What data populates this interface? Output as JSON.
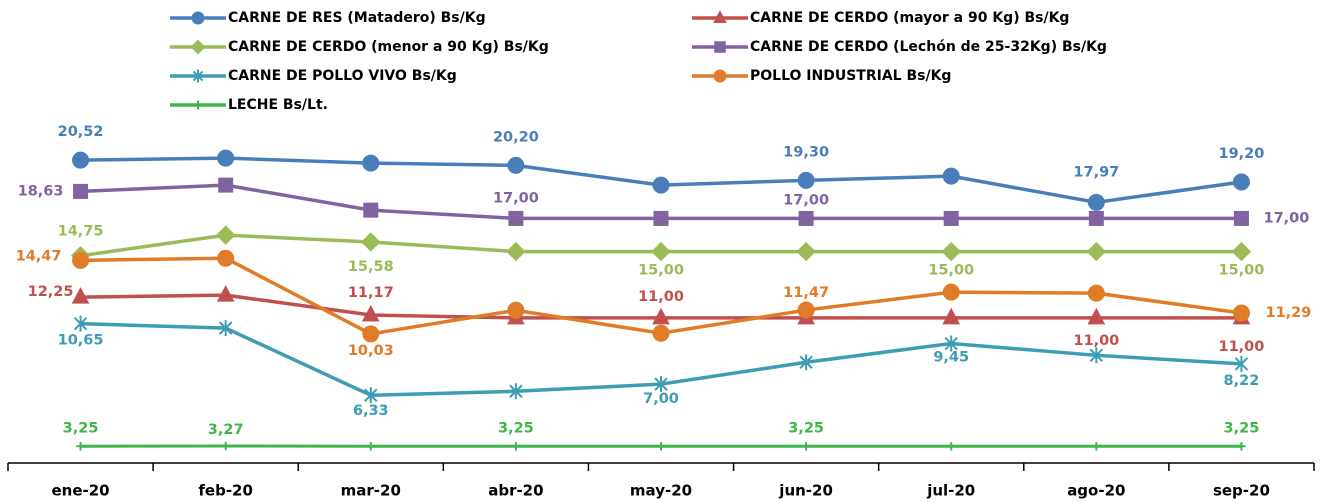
{
  "chart_data": {
    "type": "line",
    "categories": [
      "ene-20",
      "feb-20",
      "mar-20",
      "abr-20",
      "may-20",
      "jun-20",
      "jul-20",
      "ago-20",
      "sep-20"
    ],
    "ylim": [
      2,
      23
    ],
    "series": [
      {
        "name": "CARNE DE RES (Matadero) Bs/Kg",
        "color": "#4a7ebb",
        "marker": "circle",
        "values": [
          20.52,
          20.64,
          20.34,
          20.2,
          19.01,
          19.3,
          19.55,
          17.97,
          19.2
        ],
        "value_labels": [
          "20,52",
          null,
          null,
          "20,20",
          null,
          "19,30",
          null,
          "17,97",
          "19,20"
        ]
      },
      {
        "name": "CARNE DE CERDO (mayor a 90 Kg) Bs/Kg",
        "color": "#c0504d",
        "marker": "triangle",
        "values": [
          12.25,
          12.37,
          11.17,
          11.0,
          11.0,
          11.0,
          11.0,
          11.0,
          11.0
        ],
        "value_labels": [
          "12,25",
          null,
          "11,17",
          null,
          "11,00",
          null,
          null,
          "11,00",
          "11,00"
        ]
      },
      {
        "name": "CARNE DE CERDO (menor a 90 Kg) Bs/Kg",
        "color": "#9bbb59",
        "marker": "diamond",
        "values": [
          14.75,
          15.99,
          15.58,
          15.0,
          15.0,
          15.0,
          15.0,
          15.0,
          15.0
        ],
        "value_labels": [
          "14,75",
          null,
          "15,58",
          null,
          "15,00",
          null,
          "15,00",
          null,
          "15,00"
        ]
      },
      {
        "name": "CARNE DE CERDO (Lechón de 25-32Kg) Bs/Kg",
        "color": "#8064a2",
        "marker": "square",
        "values": [
          18.63,
          19.01,
          17.5,
          17.0,
          17.0,
          17.0,
          17.0,
          17.0,
          17.0
        ],
        "value_labels": [
          "18,63",
          null,
          null,
          "17,00",
          null,
          "17,00",
          null,
          null,
          "17,00"
        ]
      },
      {
        "name": "CARNE DE POLLO VIVO  Bs/Kg",
        "color": "#3e9db3",
        "marker": "star",
        "values": [
          10.65,
          10.38,
          6.33,
          6.57,
          7.0,
          8.32,
          9.45,
          8.74,
          8.22
        ],
        "value_labels": [
          "10,65",
          null,
          "6,33",
          null,
          "7,00",
          null,
          "9,45",
          null,
          "8,22"
        ]
      },
      {
        "name": "POLLO INDUSTRIAL Bs/Kg",
        "color": "#e07b27",
        "marker": "circle",
        "values": [
          14.47,
          14.6,
          10.03,
          11.46,
          10.07,
          11.47,
          12.55,
          12.49,
          11.29
        ],
        "value_labels": [
          "14,47",
          null,
          "10,03",
          null,
          null,
          "11,47",
          null,
          null,
          "11,29"
        ]
      },
      {
        "name": "LECHE  Bs/Lt.",
        "color": "#3fb64a",
        "marker": "plus",
        "values": [
          3.25,
          3.27,
          3.25,
          3.25,
          3.25,
          3.25,
          3.25,
          3.25,
          3.25
        ],
        "value_labels": [
          "3,25",
          "3,27",
          null,
          "3,25",
          null,
          "3,25",
          null,
          null,
          "3,25"
        ]
      }
    ]
  }
}
